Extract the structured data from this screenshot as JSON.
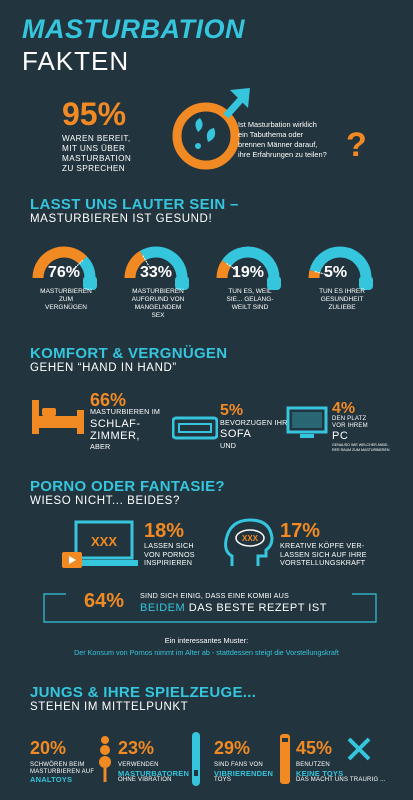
{
  "header": {
    "title_line1": "MASTURBATION",
    "title_line2": "FAKTEN"
  },
  "intro": {
    "percent": "95%",
    "text": [
      "WAREN BEREIT,",
      "MIT UNS ÜBER",
      "MASTURBATION",
      "ZU SPRECHEN"
    ],
    "question": [
      "Ist Masturbation wirklich",
      "ein Tabuthema oder",
      "brennen Männer darauf,",
      "ihre Erfahrungen zu teilen?"
    ],
    "question_mark": "?"
  },
  "section1": {
    "heading": "LASST UNS LAUTER SEIN  –",
    "subheading": "MASTURBIEREN IST GESUND!",
    "gauges": [
      {
        "percent": "76%",
        "value": 76,
        "color": "#f28a24",
        "caption": [
          "MASTURBIEREN",
          "ZUM",
          "VERGNÜGEN"
        ]
      },
      {
        "percent": "33%",
        "value": 33,
        "color": "#f28a24",
        "caption": [
          "MASTURBIEREN",
          "AUFGRUND VON",
          "MANGELNDEM",
          "SEX"
        ]
      },
      {
        "percent": "19%",
        "value": 19,
        "color": "#f28a24",
        "caption": [
          "TUN ES, WEIL",
          "SIE... GELANG-",
          "WEILT SIND"
        ]
      },
      {
        "percent": "5%",
        "value": 5,
        "color": "#f28a24",
        "caption": [
          "TUN ES IHRER",
          "GESUNDHEIT",
          "ZULIEBE"
        ]
      }
    ]
  },
  "section2": {
    "heading": "KOMFORT & VERGNÜGEN",
    "subheading": "GEHEN “HAND IN HAND”",
    "bed": {
      "percent": "66%",
      "line1": "MASTURBIEREN IM",
      "big": [
        "SCHLAF-",
        "ZIMMER,"
      ],
      "tail": "ABER"
    },
    "sofa": {
      "percent": "5%",
      "line1": "BEVORZUGEN IHR",
      "big": "SOFA",
      "tail": "UND"
    },
    "pc": {
      "percent": "4%",
      "line1": "DEN PLATZ",
      "line2": "VOR IHREM",
      "big": "PC",
      "note": [
        "GENAUSO WIE WELCHER ANDE-",
        "RER RAUM ZUM MASTURBIEREN"
      ]
    }
  },
  "section3": {
    "heading": "PORNO ODER FANTASIE?",
    "subheading": "WIESO NICHT... BEIDES?",
    "porn": {
      "percent": "18%",
      "text": [
        "LASSEN SICH",
        "VON PORNOS",
        "INSPIRIEREN"
      ],
      "screen_label": "XXX"
    },
    "fantasy": {
      "percent": "17%",
      "text": [
        "KREATIVE KÖPFE VER-",
        "LASSEN SICH AUF IHRE",
        "VORSTELLUNGSKRAFT"
      ],
      "thought_label": "XXX"
    },
    "combo": {
      "percent": "64%",
      "line1": "SIND SICH EINIG, DASS EINE KOMBI AUS",
      "highlight": "BEIDEM",
      "rest": "DAS BESTE REZEPT IST"
    },
    "pattern_title": "Ein interessantes Muster:",
    "pattern_text": "Der Konsum von Pornos nimmt im Alter ab - stattdessen steigt die Vorstellungskraft"
  },
  "section4": {
    "heading": "JUNGS & IHRE SPIELZEUGE...",
    "subheading": "STEHEN IM MITTELPUNKT",
    "items": [
      {
        "percent": "20%",
        "line1": "SCHWÖREN BEIM",
        "line2": "MASTURBIEREN AUF",
        "highlight": "ANALTOYS"
      },
      {
        "percent": "23%",
        "line1": "VERWENDEN",
        "highlight": "MASTURBATOREN",
        "line2": "OHNE VIBRATION"
      },
      {
        "percent": "29%",
        "line1": "SIND FANS VON",
        "highlight": "VIBRIERENDEN",
        "line2": "TOYS"
      },
      {
        "percent": "45%",
        "line1": "BENUTZEN",
        "highlight": "KEINE TOYS",
        "line2": "DAS MACHT UNS TRAURIG ..."
      }
    ]
  }
}
